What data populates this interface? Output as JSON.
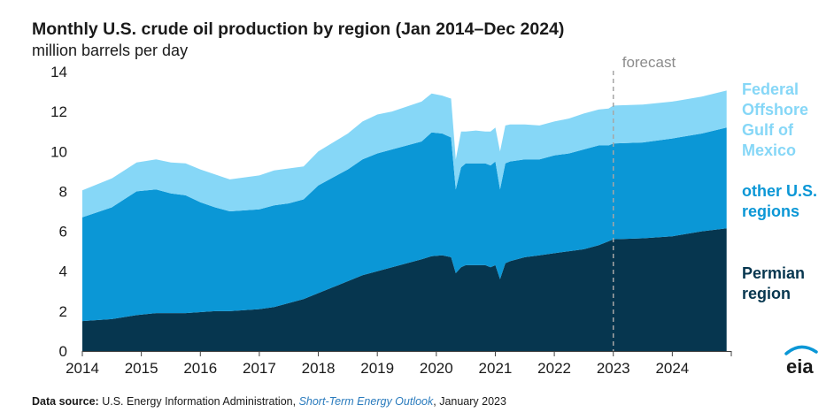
{
  "title": "Monthly U.S. crude oil production by region (Jan 2014–Dec 2024)",
  "subtitle": "million barrels per day",
  "source": {
    "label": "Data source:",
    "org": "U.S. Energy Information Administration,",
    "publication": "Short-Term Energy Outlook",
    "date": ", January 2023"
  },
  "logo_text": "eia",
  "colors": {
    "permian": "#06364f",
    "other": "#0b97d6",
    "gulf": "#86d7f7",
    "gulf_label": "#86d7f7",
    "other_label": "#0b97d6",
    "permian_label": "#06364f",
    "forecast_line": "#a6a6a6",
    "axis": "#404040"
  },
  "chart_data": {
    "type": "area",
    "stacked": true,
    "title": "Monthly U.S. crude oil production by region (Jan 2014–Dec 2024)",
    "ylabel": "million barrels per day",
    "ylim": [
      0,
      14
    ],
    "yticks": [
      "0",
      "2",
      "4",
      "6",
      "8",
      "10",
      "12",
      "14"
    ],
    "xlim": [
      2014,
      2025
    ],
    "xticks": [
      "2014",
      "2015",
      "2016",
      "2017",
      "2018",
      "2019",
      "2020",
      "2021",
      "2022",
      "2023",
      "2024"
    ],
    "grid": false,
    "forecast_start": 2023,
    "forecast_label": "forecast",
    "x": [
      2014.0,
      2014.5,
      2014.92,
      2015.25,
      2015.5,
      2015.75,
      2016.0,
      2016.25,
      2016.5,
      2016.75,
      2017.0,
      2017.25,
      2017.5,
      2017.75,
      2018.0,
      2018.25,
      2018.5,
      2018.75,
      2019.0,
      2019.25,
      2019.5,
      2019.75,
      2019.92,
      2020.1,
      2020.25,
      2020.33,
      2020.42,
      2020.5,
      2020.67,
      2020.83,
      2020.92,
      2021.0,
      2021.08,
      2021.17,
      2021.25,
      2021.5,
      2021.75,
      2022.0,
      2022.25,
      2022.5,
      2022.75,
      2022.92,
      2023.0,
      2023.5,
      2024.0,
      2024.5,
      2024.92
    ],
    "series": [
      {
        "name": "Permian region",
        "values": [
          1.5,
          1.6,
          1.8,
          1.9,
          1.9,
          1.9,
          1.95,
          2.0,
          2.0,
          2.05,
          2.1,
          2.2,
          2.4,
          2.6,
          2.9,
          3.2,
          3.5,
          3.8,
          4.0,
          4.2,
          4.4,
          4.6,
          4.75,
          4.8,
          4.7,
          3.9,
          4.2,
          4.3,
          4.3,
          4.3,
          4.2,
          4.3,
          3.6,
          4.4,
          4.5,
          4.7,
          4.8,
          4.9,
          5.0,
          5.1,
          5.3,
          5.5,
          5.6,
          5.65,
          5.75,
          6.0,
          6.15
        ]
      },
      {
        "name": "other U.S. regions",
        "values": [
          5.2,
          5.6,
          6.2,
          6.2,
          6.0,
          5.9,
          5.5,
          5.2,
          5.0,
          5.0,
          5.0,
          5.1,
          5.0,
          5.0,
          5.4,
          5.5,
          5.6,
          5.8,
          5.9,
          5.9,
          5.9,
          5.9,
          6.2,
          6.1,
          6.0,
          4.2,
          5.0,
          5.1,
          5.1,
          5.1,
          5.1,
          5.2,
          4.5,
          5.0,
          5.0,
          4.9,
          4.8,
          4.9,
          4.9,
          5.0,
          5.0,
          4.8,
          4.8,
          4.8,
          4.9,
          4.9,
          5.05
        ]
      },
      {
        "name": "Federal Offshore Gulf of Mexico",
        "values": [
          1.35,
          1.45,
          1.45,
          1.5,
          1.55,
          1.6,
          1.65,
          1.65,
          1.6,
          1.65,
          1.7,
          1.75,
          1.75,
          1.65,
          1.7,
          1.75,
          1.8,
          1.9,
          1.95,
          1.9,
          1.95,
          2.0,
          1.95,
          1.9,
          1.95,
          1.5,
          1.8,
          1.6,
          1.65,
          1.6,
          1.7,
          1.7,
          1.9,
          1.9,
          1.85,
          1.75,
          1.7,
          1.7,
          1.75,
          1.8,
          1.8,
          1.85,
          1.9,
          1.9,
          1.85,
          1.85,
          1.85
        ]
      }
    ],
    "legend": [
      "Federal Offshore Gulf of Mexico",
      "other U.S. regions",
      "Permian region"
    ],
    "legend_placement": "right"
  }
}
